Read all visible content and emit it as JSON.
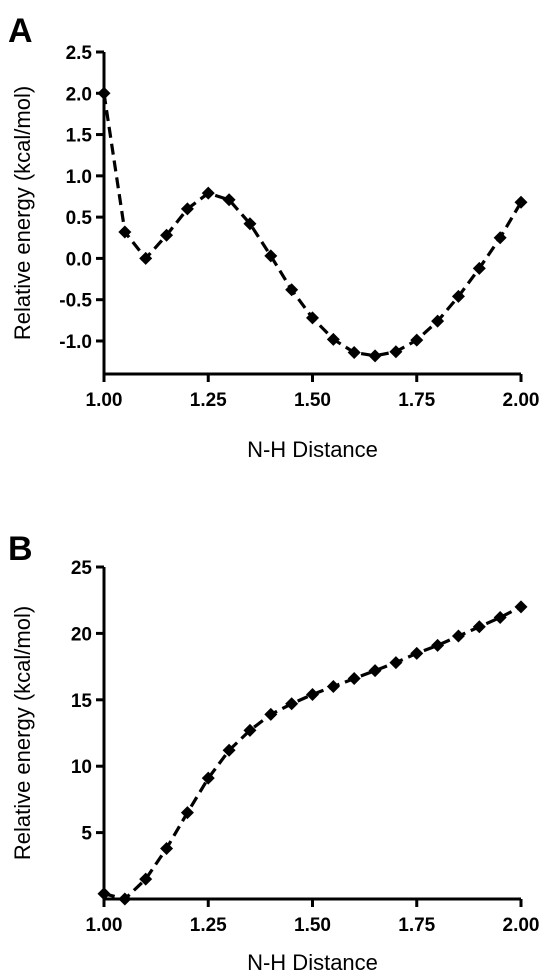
{
  "chart_data": [
    {
      "type": "line",
      "panel_label": "A",
      "xlabel": "N-H Distance",
      "ylabel": "Relative energy (kcal/mol)",
      "xlim": [
        1.0,
        2.0
      ],
      "ylim": [
        -1.4,
        2.5
      ],
      "xticks": [
        "1.00",
        "1.25",
        "1.50",
        "1.75",
        "2.00"
      ],
      "xtick_values": [
        1.0,
        1.25,
        1.5,
        1.75,
        2.0
      ],
      "yticks": [
        "-1.0",
        "-0.5",
        "0.0",
        "0.5",
        "1.0",
        "1.5",
        "2.0",
        "2.5"
      ],
      "ytick_values": [
        -1.0,
        -0.5,
        0.0,
        0.5,
        1.0,
        1.5,
        2.0,
        2.5
      ],
      "x": [
        1.0,
        1.05,
        1.1,
        1.15,
        1.2,
        1.25,
        1.3,
        1.35,
        1.4,
        1.45,
        1.5,
        1.55,
        1.6,
        1.65,
        1.7,
        1.75,
        1.8,
        1.85,
        1.9,
        1.95,
        2.0
      ],
      "values": [
        2.0,
        0.32,
        0.0,
        0.28,
        0.6,
        0.79,
        0.71,
        0.42,
        0.03,
        -0.38,
        -0.72,
        -0.98,
        -1.14,
        -1.18,
        -1.13,
        -0.99,
        -0.76,
        -0.46,
        -0.12,
        0.25,
        0.68
      ],
      "grid": false,
      "marker": "diamond",
      "line_style": "dashed",
      "color": "#000000"
    },
    {
      "type": "line",
      "panel_label": "B",
      "xlabel": "N-H Distance",
      "ylabel": "Relative energy (kcal/mol)",
      "xlim": [
        1.0,
        2.0
      ],
      "ylim": [
        0,
        25
      ],
      "xticks": [
        "1.00",
        "1.25",
        "1.50",
        "1.75",
        "2.00"
      ],
      "xtick_values": [
        1.0,
        1.25,
        1.5,
        1.75,
        2.0
      ],
      "yticks": [
        "5",
        "10",
        "15",
        "20",
        "25"
      ],
      "ytick_values": [
        5,
        10,
        15,
        20,
        25
      ],
      "x": [
        1.0,
        1.05,
        1.1,
        1.15,
        1.2,
        1.25,
        1.3,
        1.35,
        1.4,
        1.45,
        1.5,
        1.55,
        1.6,
        1.65,
        1.7,
        1.75,
        1.8,
        1.85,
        1.9,
        1.95,
        2.0
      ],
      "values": [
        0.4,
        0.0,
        1.5,
        3.8,
        6.5,
        9.1,
        11.2,
        12.7,
        13.9,
        14.7,
        15.4,
        16.0,
        16.6,
        17.2,
        17.8,
        18.5,
        19.1,
        19.8,
        20.5,
        21.2,
        22.0
      ],
      "grid": false,
      "marker": "diamond",
      "line_style": "dashed",
      "color": "#000000"
    }
  ]
}
